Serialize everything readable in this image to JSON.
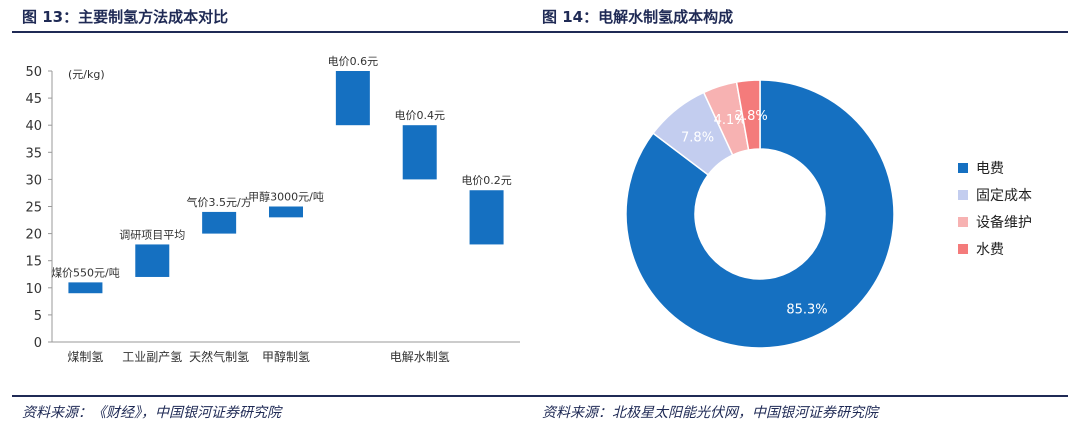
{
  "left": {
    "title": "图 13：主要制氢方法成本对比",
    "source": "资料来源：《财经》，中国银河证券研究院",
    "chart_data": {
      "type": "bar",
      "subtype": "floating",
      "unit_label": "(元/kg)",
      "ylim": [
        0,
        50
      ],
      "yticks": [
        "0",
        "5",
        "10",
        "15",
        "20",
        "25",
        "30",
        "35",
        "40",
        "45",
        "50"
      ],
      "category_labels": [
        "煤制氢",
        "工业副产氢",
        "天然气制氢",
        "甲醇制氢",
        "电解水制氢"
      ],
      "bars": [
        {
          "low": 9,
          "high": 11,
          "label": "煤价550元/吨"
        },
        {
          "low": 12,
          "high": 18,
          "label": "调研项目平均"
        },
        {
          "low": 20,
          "high": 24,
          "label": "气价3.5元/方"
        },
        {
          "low": 23,
          "high": 25,
          "label": "甲醇3000元/吨"
        },
        {
          "low": 40,
          "high": 50,
          "label": "电价0.6元"
        },
        {
          "low": 30,
          "high": 40,
          "label": "电价0.4元"
        },
        {
          "low": 18,
          "high": 28,
          "label": "电价0.2元"
        }
      ],
      "color": "#1570c1",
      "grid": false
    }
  },
  "right": {
    "title": "图 14：电解水制氢成本构成",
    "source": "资料来源：北极星太阳能光伏网，中国银河证券研究院",
    "chart_data": {
      "type": "pie",
      "subtype": "donut",
      "slices": [
        {
          "name": "电费",
          "value": 85.3,
          "label": "85.3%",
          "color": "#1570c1"
        },
        {
          "name": "固定成本",
          "value": 7.8,
          "label": "7.8%",
          "color": "#c3cdef"
        },
        {
          "name": "设备维护",
          "value": 4.1,
          "label": "4.1%",
          "color": "#f7b2b2"
        },
        {
          "name": "水费",
          "value": 2.8,
          "label": "2.8%",
          "color": "#f47b7b"
        }
      ],
      "legend_position": "right"
    }
  }
}
